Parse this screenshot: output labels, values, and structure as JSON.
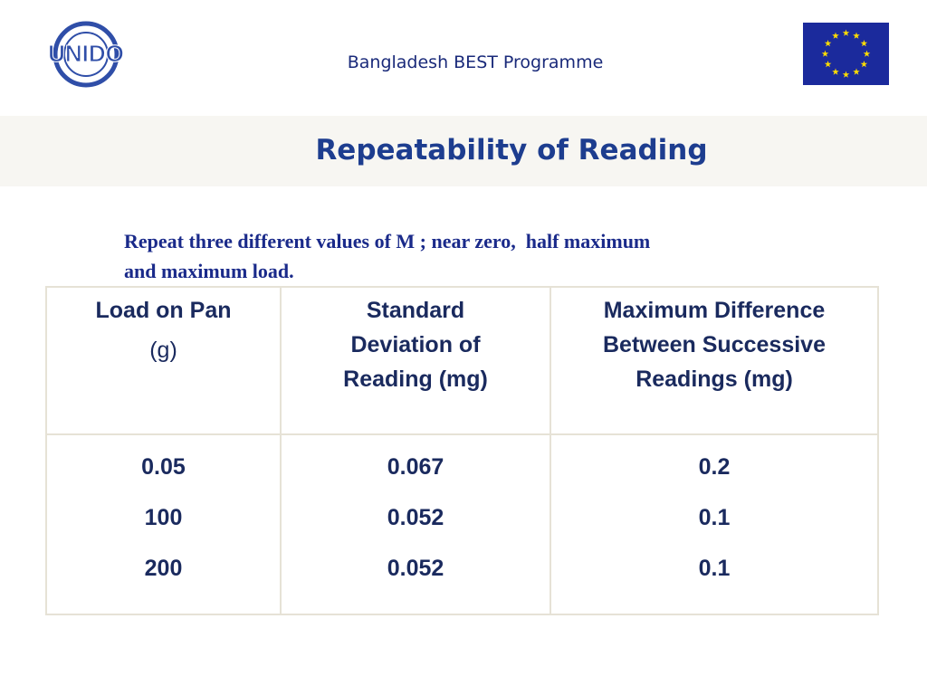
{
  "header": {
    "logo": "UNIDO",
    "title": "Bangladesh BEST Programme"
  },
  "title": "Repeatability of Reading",
  "intro": [
    "Repeat three different values of M ; near zero,  half maximum",
    "and maximum load."
  ],
  "table": {
    "headers": [
      [
        "Load on Pan",
        "(g)"
      ],
      [
        "Standard",
        "Deviation of",
        "Reading (mg)"
      ],
      [
        "Maximum Difference",
        "Between  Successive",
        "Readings (mg)"
      ]
    ],
    "rows": [
      [
        "0.05",
        "0.067",
        "0.2"
      ],
      [
        "100",
        "0.052",
        "0.1"
      ],
      [
        "200",
        "0.052",
        "0.1"
      ]
    ]
  }
}
